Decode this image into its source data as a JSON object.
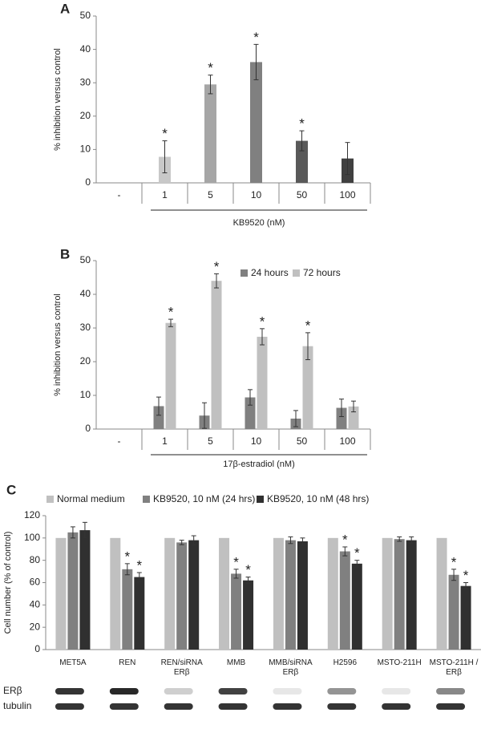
{
  "chart_data": [
    {
      "type": "bar",
      "panel": "A",
      "ylabel": "% inhibition versus control",
      "xlabel": "KB9520 (nM)",
      "categories": [
        "-",
        "1",
        "5",
        "10",
        "50",
        "100"
      ],
      "values": [
        null,
        7.8,
        29.5,
        36.2,
        12.6,
        7.3
      ],
      "errors": [
        null,
        4.8,
        2.8,
        5.3,
        3.0,
        4.8
      ],
      "colors": [
        "#c8c8c8",
        "#c8c8c8",
        "#a6a6a6",
        "#808080",
        "#595959",
        "#404040"
      ],
      "stars": [
        null,
        "*",
        "*",
        "*",
        "*",
        null
      ],
      "ylim": [
        0,
        50
      ],
      "yticks": [
        0,
        10,
        20,
        30,
        40,
        50
      ]
    },
    {
      "type": "grouped_bar",
      "panel": "B",
      "ylabel": "% inhibition versus control",
      "xlabel": "17β-estradiol  (nM)",
      "categories": [
        "-",
        "1",
        "5",
        "10",
        "50",
        "100"
      ],
      "series": [
        {
          "name": "24 hours",
          "color": "#808080",
          "values": [
            null,
            6.8,
            4.0,
            9.4,
            3.1,
            6.3
          ],
          "errors": [
            null,
            2.7,
            3.8,
            2.3,
            2.4,
            2.6
          ],
          "stars": [
            null,
            null,
            null,
            null,
            null,
            null
          ]
        },
        {
          "name": "72 hours",
          "color": "#c0c0c0",
          "values": [
            null,
            31.5,
            44.0,
            27.4,
            24.6,
            6.7
          ],
          "errors": [
            null,
            1.1,
            2.1,
            2.4,
            4.0,
            1.6
          ],
          "stars": [
            null,
            "*",
            "*",
            "*",
            "*",
            null
          ]
        }
      ],
      "legend": "top-right",
      "ylim": [
        0,
        50
      ],
      "yticks": [
        0,
        10,
        20,
        30,
        40,
        50
      ]
    },
    {
      "type": "grouped_bar",
      "panel": "C",
      "ylabel": "Cell number (% of control)",
      "categories": [
        "MET5A",
        "REN",
        "REN/siRNA\nERβ",
        "MMB",
        "MMB/siRNA\nERβ",
        "H2596",
        "MSTO-211H",
        "MSTO-211H /\nERβ"
      ],
      "series": [
        {
          "name": "Normal medium",
          "color": "#c0c0c0",
          "values": [
            100,
            100,
            100,
            100,
            100,
            100,
            100,
            100
          ],
          "errors": [
            null,
            null,
            null,
            null,
            null,
            null,
            null,
            null
          ],
          "stars": [
            null,
            null,
            null,
            null,
            null,
            null,
            null,
            null
          ]
        },
        {
          "name": "KB9520, 10 nM (24 hrs)",
          "color": "#808080",
          "values": [
            105,
            72,
            96,
            68,
            98,
            88,
            99,
            67
          ],
          "errors": [
            5,
            5,
            2,
            4,
            3,
            4,
            2,
            5
          ],
          "stars": [
            null,
            "*",
            null,
            "*",
            null,
            "*",
            null,
            "*"
          ]
        },
        {
          "name": "KB9520, 10 nM (48 hrs)",
          "color": "#303030",
          "values": [
            107,
            65,
            98,
            62,
            97,
            77,
            98,
            57
          ],
          "errors": [
            7,
            4,
            4,
            3,
            3,
            3,
            3,
            3
          ],
          "stars": [
            null,
            "*",
            null,
            "*",
            null,
            "*",
            null,
            "*"
          ]
        }
      ],
      "legend": "top",
      "blot_rows": [
        "ERβ",
        "tubulin"
      ],
      "ylim": [
        0,
        120
      ],
      "yticks": [
        0,
        20,
        40,
        60,
        80,
        100,
        120
      ]
    }
  ]
}
